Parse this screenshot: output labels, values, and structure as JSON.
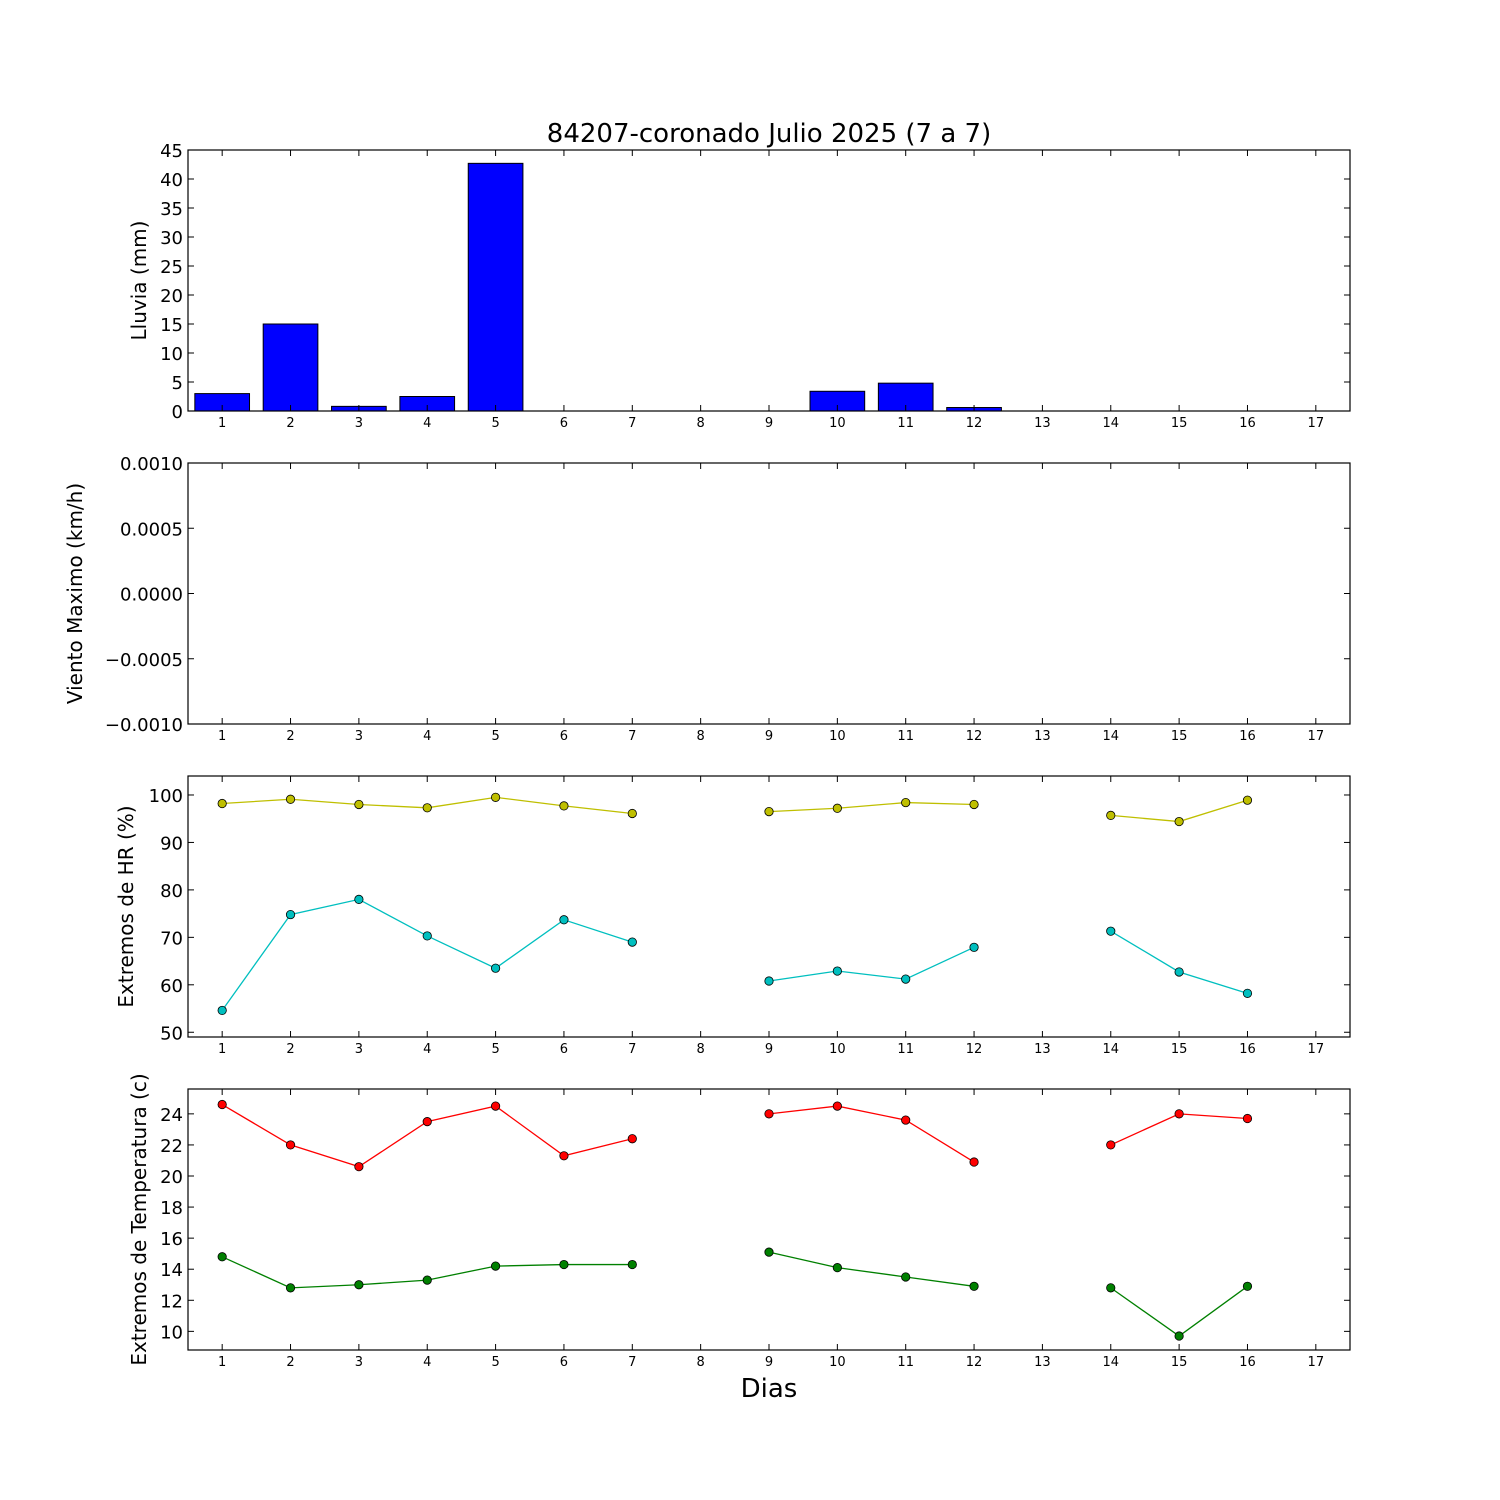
{
  "chart_data": [
    {
      "type": "bar",
      "title": "84207-coronado Julio 2025  (7 a 7)",
      "xlabel": "",
      "ylabel": "Lluvia (mm)",
      "xlim": [
        0.5,
        17.5
      ],
      "ylim": [
        0,
        45
      ],
      "x_ticks": [
        "1",
        "2",
        "3",
        "4",
        "5",
        "6",
        "7",
        "8",
        "9",
        "10",
        "11",
        "12",
        "13",
        "14",
        "15",
        "16",
        "17"
      ],
      "y_ticks": [
        "0",
        "5",
        "10",
        "15",
        "20",
        "25",
        "30",
        "35",
        "40",
        "45"
      ],
      "categories": [
        1,
        2,
        3,
        4,
        5,
        6,
        7,
        8,
        9,
        10,
        11,
        12,
        13,
        14,
        15,
        16
      ],
      "values": [
        3.0,
        15.0,
        0.8,
        2.5,
        42.7,
        0,
        0,
        null,
        0,
        3.4,
        4.8,
        0.6,
        null,
        0,
        0,
        0
      ],
      "color": "#0000ff"
    },
    {
      "type": "line",
      "xlabel": "",
      "ylabel": "Viento Maximo (km/h)",
      "xlim": [
        0.5,
        17.5
      ],
      "ylim": [
        -0.001,
        0.001
      ],
      "x_ticks": [
        "1",
        "2",
        "3",
        "4",
        "5",
        "6",
        "7",
        "8",
        "9",
        "10",
        "11",
        "12",
        "13",
        "14",
        "15",
        "16",
        "17"
      ],
      "y_ticks": [
        "−0.0010",
        "−0.0005",
        "0.0000",
        "0.0005",
        "0.0010"
      ],
      "series": []
    },
    {
      "type": "line",
      "xlabel": "",
      "ylabel": "Extremos de HR (%)",
      "xlim": [
        0.5,
        17.5
      ],
      "ylim": [
        49,
        104
      ],
      "x_ticks": [
        "1",
        "2",
        "3",
        "4",
        "5",
        "6",
        "7",
        "8",
        "9",
        "10",
        "11",
        "12",
        "13",
        "14",
        "15",
        "16",
        "17"
      ],
      "y_ticks": [
        "50",
        "60",
        "70",
        "80",
        "90",
        "100"
      ],
      "x": [
        1,
        2,
        3,
        4,
        5,
        6,
        7,
        8,
        9,
        10,
        11,
        12,
        13,
        14,
        15,
        16
      ],
      "series": [
        {
          "color": "#bfbf00",
          "values": [
            98.2,
            99.1,
            98.0,
            97.3,
            99.5,
            97.7,
            96.1,
            null,
            96.5,
            97.2,
            98.4,
            98.0,
            null,
            95.7,
            94.4,
            98.9
          ]
        },
        {
          "color": "#00bfbf",
          "values": [
            54.6,
            74.8,
            78.0,
            70.3,
            63.5,
            73.7,
            69.0,
            null,
            60.8,
            62.9,
            61.2,
            67.9,
            null,
            71.3,
            62.7,
            58.2
          ]
        }
      ]
    },
    {
      "type": "line",
      "xlabel": "Dias",
      "ylabel": "Extremos de Temperatura (c)",
      "xlim": [
        0.5,
        17.5
      ],
      "ylim": [
        8.8,
        25.6
      ],
      "x_ticks": [
        "1",
        "2",
        "3",
        "4",
        "5",
        "6",
        "7",
        "8",
        "9",
        "10",
        "11",
        "12",
        "13",
        "14",
        "15",
        "16",
        "17"
      ],
      "y_ticks": [
        "10",
        "12",
        "14",
        "16",
        "18",
        "20",
        "22",
        "24"
      ],
      "x": [
        1,
        2,
        3,
        4,
        5,
        6,
        7,
        8,
        9,
        10,
        11,
        12,
        13,
        14,
        15,
        16
      ],
      "series": [
        {
          "color": "#ff0000",
          "values": [
            24.6,
            22.0,
            20.6,
            23.5,
            24.5,
            21.3,
            22.4,
            null,
            24.0,
            24.5,
            23.6,
            20.9,
            null,
            22.0,
            24.0,
            23.7
          ]
        },
        {
          "color": "#008000",
          "values": [
            14.8,
            12.8,
            13.0,
            13.3,
            14.2,
            14.3,
            14.3,
            null,
            15.1,
            14.1,
            13.5,
            12.9,
            null,
            12.8,
            9.7,
            12.9
          ]
        }
      ]
    }
  ]
}
